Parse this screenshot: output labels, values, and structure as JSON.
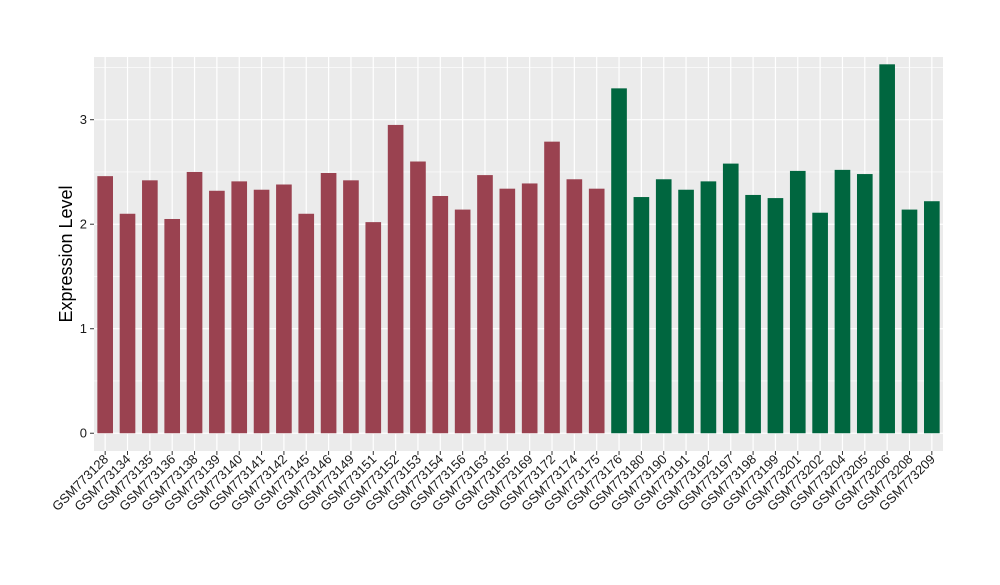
{
  "chart_data": {
    "type": "bar",
    "title": "",
    "xlabel": "",
    "ylabel": "Expression Level",
    "ylim": [
      -0.17,
      3.6
    ],
    "yticks": [
      0,
      1,
      2,
      3
    ],
    "grid": true,
    "legend": "none",
    "categories": [
      "GSM773128",
      "GSM773134",
      "GSM773135",
      "GSM773136",
      "GSM773138",
      "GSM773139",
      "GSM773140",
      "GSM773141",
      "GSM773142",
      "GSM773145",
      "GSM773146",
      "GSM773149",
      "GSM773151",
      "GSM773152",
      "GSM773153",
      "GSM773154",
      "GSM773156",
      "GSM773163",
      "GSM773165",
      "GSM773169",
      "GSM773172",
      "GSM773174",
      "GSM773175",
      "GSM773176",
      "GSM773180",
      "GSM773190",
      "GSM773191",
      "GSM773192",
      "GSM773197",
      "GSM773198",
      "GSM773199",
      "GSM773201",
      "GSM773202",
      "GSM773204",
      "GSM773205",
      "GSM773206",
      "GSM773208",
      "GSM773209"
    ],
    "values": [
      2.46,
      2.1,
      2.42,
      2.05,
      2.5,
      2.32,
      2.41,
      2.33,
      2.38,
      2.1,
      2.49,
      2.42,
      2.02,
      2.95,
      2.6,
      2.27,
      2.14,
      2.47,
      2.34,
      2.39,
      2.79,
      2.43,
      2.34,
      3.3,
      2.26,
      2.43,
      2.33,
      2.41,
      2.58,
      2.28,
      2.25,
      2.51,
      2.11,
      2.52,
      2.48,
      3.53,
      2.14,
      2.22
    ],
    "groups": [
      0,
      0,
      0,
      0,
      0,
      0,
      0,
      0,
      0,
      0,
      0,
      0,
      0,
      0,
      0,
      0,
      0,
      0,
      0,
      0,
      0,
      0,
      0,
      1,
      1,
      1,
      1,
      1,
      1,
      1,
      1,
      1,
      1,
      1,
      1,
      1,
      1,
      1
    ],
    "colors": [
      "#9a4250",
      "#00663f"
    ],
    "panel_background": "#ebebeb",
    "gridline_color": "#ffffff"
  }
}
